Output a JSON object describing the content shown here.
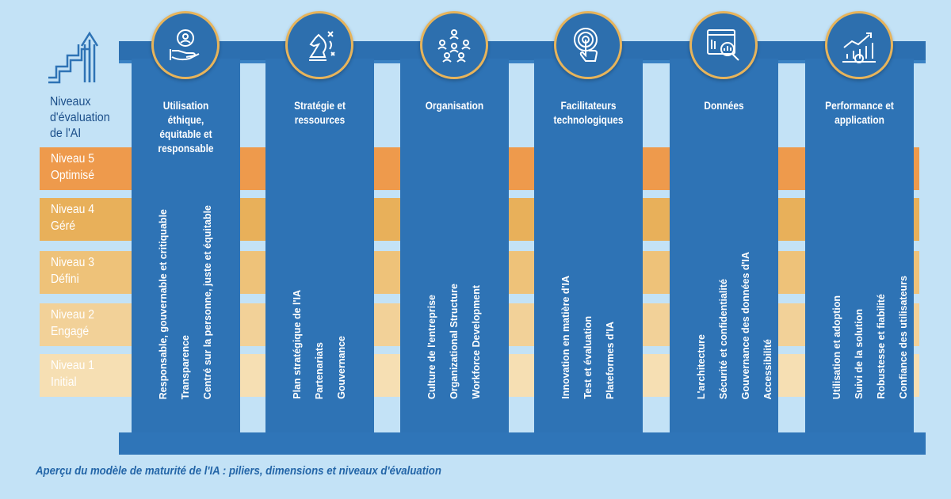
{
  "header": {
    "levels_title": "Niveaux\nd'évaluation\nde l'AI"
  },
  "levels": [
    {
      "label": "Niveau 5\nOptimisé",
      "color": "#ee9a4c",
      "text_color": "#ffffff"
    },
    {
      "label": "Niveau 4\nGéré",
      "color": "#e8b05a",
      "text_color": "#ffffff"
    },
    {
      "label": "Niveau 3\nDéfini",
      "color": "#eec279",
      "text_color": "#ffffff"
    },
    {
      "label": "Niveau 2\nEngagé",
      "color": "#f2d198",
      "text_color": "#ffffff"
    },
    {
      "label": "Niveau 1\nInitial",
      "color": "#f6dfb3",
      "text_color": "#ffffff"
    }
  ],
  "pillars": [
    {
      "title": "Utilisation éthique,\néquitable et\nresponsable",
      "icon": "hand-people-cycle-icon",
      "dimensions": [
        "Responsable, gouvernable et critiquable",
        "Transparence",
        "Centré sur la personne, juste et équitable"
      ]
    },
    {
      "title": "Stratégie et\nressources",
      "icon": "chess-knight-strategy-icon",
      "dimensions": [
        "Plan stratégique de l'IA",
        "Partenariats",
        "Gouvernance"
      ]
    },
    {
      "title": "Organisation",
      "icon": "people-network-icon",
      "dimensions": [
        "Culture de l'entreprise",
        "Organizational Structure",
        "Workforce Development"
      ]
    },
    {
      "title": "Facilitateurs\ntechnologiques",
      "icon": "touch-tap-icon",
      "dimensions": [
        "Innovation en matière d'IA",
        "Test et évaluation",
        "Plateformes d'IA"
      ]
    },
    {
      "title": "Données",
      "icon": "data-analysis-icon",
      "dimensions": [
        "L'architecture",
        "Sécurité et confidentialité",
        "Gouvernance des données d'IA",
        "Accessibilité"
      ]
    },
    {
      "title": "Performance et\napplication",
      "icon": "growth-chart-icon",
      "dimensions": [
        "Utilisation et adoption",
        "Suivi de la solution",
        "Robustesse et fiabilité",
        "Confiance des utilisateurs"
      ]
    }
  ],
  "caption": "Aperçu du modèle de maturité de l'IA : piliers, dimensions et niveaux d'évaluation",
  "colors": {
    "background": "#c3e2f6",
    "pillar": "#2e73b5",
    "beam": "#2c6fb0",
    "accent": "#e7b45b"
  }
}
